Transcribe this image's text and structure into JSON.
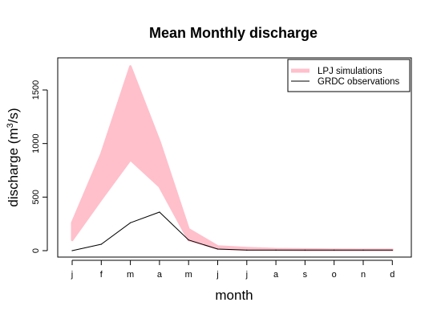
{
  "chart_data": {
    "type": "area",
    "title": "Mean Monthly discharge",
    "xlabel": "month",
    "ylabel_main": "discharge (m",
    "ylabel_sup": "3",
    "ylabel_tail": "/s)",
    "categories": [
      "j",
      "f",
      "m",
      "a",
      "m",
      "j",
      "j",
      "a",
      "s",
      "o",
      "n",
      "d"
    ],
    "ylim": [
      -60,
      1800
    ],
    "yticks": [
      0,
      500,
      1000,
      1500
    ],
    "grid": false,
    "legend_position": "top-right",
    "band": {
      "name": "LPJ simulations",
      "color": "#ffc0cb",
      "lower": [
        100,
        480,
        850,
        600,
        100,
        20,
        10,
        8,
        6,
        5,
        5,
        5
      ],
      "upper": [
        260,
        900,
        1720,
        1020,
        200,
        40,
        25,
        15,
        12,
        10,
        8,
        8
      ]
    },
    "series": [
      {
        "name": "GRDC observations",
        "color": "#000000",
        "values": [
          0,
          60,
          260,
          360,
          100,
          15,
          5,
          5,
          5,
          5,
          5,
          5
        ]
      }
    ]
  }
}
